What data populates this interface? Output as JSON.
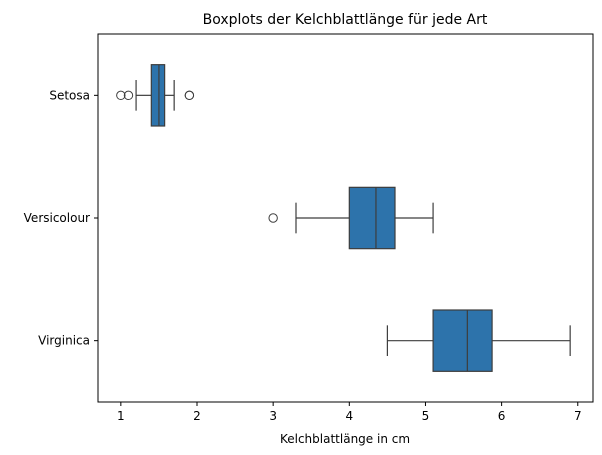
{
  "chart_data": {
    "type": "boxplot",
    "orientation": "horizontal",
    "title": "Boxplots der Kelchblattlänge für jede Art",
    "xlabel": "Kelchblattlänge in cm",
    "ylabel": "",
    "xlim": [
      0.7,
      7.2
    ],
    "xticks": [
      1,
      2,
      3,
      4,
      5,
      6,
      7
    ],
    "grid": false,
    "box_color": "#2d73ab",
    "line_color": "#3d3d3d",
    "categories": [
      "Setosa",
      "Versicolour",
      "Virginica"
    ],
    "boxes": [
      {
        "category": "Setosa",
        "whisker_low": 1.2,
        "q1": 1.4,
        "median": 1.5,
        "q3": 1.575,
        "whisker_high": 1.7,
        "outliers": [
          1.0,
          1.1,
          1.9,
          1.9
        ]
      },
      {
        "category": "Versicolour",
        "whisker_low": 3.3,
        "q1": 4.0,
        "median": 4.35,
        "q3": 4.6,
        "whisker_high": 5.1,
        "outliers": [
          3.0
        ]
      },
      {
        "category": "Virginica",
        "whisker_low": 4.5,
        "q1": 5.1,
        "median": 5.55,
        "q3": 5.875,
        "whisker_high": 6.9,
        "outliers": []
      }
    ]
  }
}
